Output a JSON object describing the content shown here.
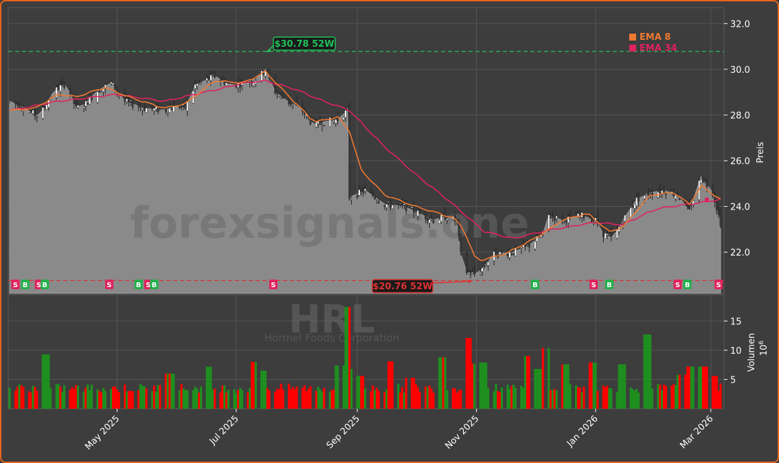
{
  "watermark": {
    "site": "forexsignals.one",
    "ticker": "HRL",
    "company": "Hormel Foods Corporation"
  },
  "colors": {
    "background": "#3d3d3d",
    "border": "#e8641e",
    "area": "#8a8a8a",
    "ema8": "#f07a32",
    "ema34": "#e0225e",
    "up": "#1e8f1e",
    "down": "#ff0000",
    "high_line": "#22c05a",
    "low_line": "#e03030"
  },
  "chart_data": [
    {
      "type": "line",
      "panel": "price",
      "ylabel": "Preis",
      "ylim": [
        20.2,
        32.7
      ],
      "yticks": [
        22.0,
        24.0,
        26.0,
        28.0,
        30.0,
        32.0
      ],
      "ytick_labels": [
        "22.0",
        "24.0",
        "26.0",
        "28.0",
        "30.0",
        "32.0"
      ],
      "x_range": [
        "2025-03-07",
        "2026-03-06"
      ],
      "xtick_labels": [
        "May 2025",
        "Jul 2025",
        "Sep 2025",
        "Nov 2025",
        "Jan 2026",
        "Mar 2026"
      ],
      "xtick_dates": [
        "2025-05-01",
        "2025-07-01",
        "2025-09-01",
        "2025-11-01",
        "2026-01-01",
        "2026-03-01"
      ],
      "grid": true,
      "close_anchors": [
        [
          "2025-03-07",
          28.6
        ],
        [
          "2025-03-15",
          28.3
        ],
        [
          "2025-03-22",
          27.9
        ],
        [
          "2025-03-29",
          29.0
        ],
        [
          "2025-04-05",
          29.4
        ],
        [
          "2025-04-10",
          28.3
        ],
        [
          "2025-04-15",
          28.5
        ],
        [
          "2025-04-20",
          29.0
        ],
        [
          "2025-04-28",
          29.4
        ],
        [
          "2025-05-05",
          28.6
        ],
        [
          "2025-05-15",
          28.3
        ],
        [
          "2025-05-25",
          28.2
        ],
        [
          "2025-06-01",
          28.4
        ],
        [
          "2025-06-05",
          28.3
        ],
        [
          "2025-06-10",
          29.3
        ],
        [
          "2025-06-20",
          29.7
        ],
        [
          "2025-06-28",
          29.3
        ],
        [
          "2025-07-05",
          29.4
        ],
        [
          "2025-07-12",
          29.6
        ],
        [
          "2025-07-16",
          30.0
        ],
        [
          "2025-07-20",
          29.1
        ],
        [
          "2025-07-27",
          28.6
        ],
        [
          "2025-08-03",
          28.3
        ],
        [
          "2025-08-10",
          27.5
        ],
        [
          "2025-08-15",
          27.7
        ],
        [
          "2025-08-22",
          27.8
        ],
        [
          "2025-08-27",
          28.2
        ],
        [
          "2025-08-28",
          24.4
        ],
        [
          "2025-09-05",
          24.7
        ],
        [
          "2025-09-15",
          24.1
        ],
        [
          "2025-09-25",
          24.0
        ],
        [
          "2025-10-05",
          23.6
        ],
        [
          "2025-10-10",
          23.4
        ],
        [
          "2025-10-18",
          23.6
        ],
        [
          "2025-10-22",
          23.3
        ],
        [
          "2025-10-25",
          21.2
        ],
        [
          "2025-11-01",
          21.0
        ],
        [
          "2025-11-10",
          21.9
        ],
        [
          "2025-11-20",
          22.0
        ],
        [
          "2025-11-28",
          22.3
        ],
        [
          "2025-12-05",
          22.8
        ],
        [
          "2025-12-08",
          23.6
        ],
        [
          "2025-12-15",
          23.4
        ],
        [
          "2025-12-25",
          23.6
        ],
        [
          "2026-01-01",
          23.4
        ],
        [
          "2026-01-05",
          22.8
        ],
        [
          "2026-01-10",
          22.6
        ],
        [
          "2026-01-15",
          23.4
        ],
        [
          "2026-01-22",
          24.3
        ],
        [
          "2026-01-29",
          24.6
        ],
        [
          "2026-02-05",
          24.7
        ],
        [
          "2026-02-12",
          24.5
        ],
        [
          "2026-02-18",
          23.8
        ],
        [
          "2026-02-24",
          25.3
        ],
        [
          "2026-03-02",
          24.6
        ],
        [
          "2026-03-06",
          23.3
        ]
      ],
      "ema8_anchors": [
        [
          "2025-03-07",
          28.2
        ],
        [
          "2025-03-20",
          28.3
        ],
        [
          "2025-04-01",
          28.9
        ],
        [
          "2025-04-10",
          28.8
        ],
        [
          "2025-04-25",
          29.2
        ],
        [
          "2025-05-10",
          28.7
        ],
        [
          "2025-05-25",
          28.3
        ],
        [
          "2025-06-05",
          28.5
        ],
        [
          "2025-06-20",
          29.5
        ],
        [
          "2025-07-05",
          29.4
        ],
        [
          "2025-07-16",
          29.9
        ],
        [
          "2025-07-27",
          28.9
        ],
        [
          "2025-08-10",
          27.7
        ],
        [
          "2025-08-22",
          27.9
        ],
        [
          "2025-08-28",
          27.3
        ],
        [
          "2025-09-03",
          25.6
        ],
        [
          "2025-09-15",
          24.5
        ],
        [
          "2025-10-01",
          24.0
        ],
        [
          "2025-10-20",
          23.5
        ],
        [
          "2025-10-25",
          23.1
        ],
        [
          "2025-11-01",
          21.6
        ],
        [
          "2025-11-15",
          21.9
        ],
        [
          "2025-12-01",
          22.6
        ],
        [
          "2025-12-15",
          23.4
        ],
        [
          "2025-12-28",
          23.7
        ],
        [
          "2026-01-08",
          22.9
        ],
        [
          "2026-01-15",
          23.1
        ],
        [
          "2026-01-29",
          24.5
        ],
        [
          "2026-02-10",
          24.6
        ],
        [
          "2026-02-18",
          24.1
        ],
        [
          "2026-02-24",
          24.9
        ],
        [
          "2026-03-06",
          24.3
        ]
      ],
      "ema34_anchors": [
        [
          "2025-03-07",
          28.2
        ],
        [
          "2025-04-01",
          28.6
        ],
        [
          "2025-05-01",
          28.9
        ],
        [
          "2025-05-25",
          28.6
        ],
        [
          "2025-06-15",
          29.0
        ],
        [
          "2025-07-05",
          29.4
        ],
        [
          "2025-07-16",
          29.5
        ],
        [
          "2025-08-01",
          29.1
        ],
        [
          "2025-08-15",
          28.6
        ],
        [
          "2025-08-28",
          28.2
        ],
        [
          "2025-09-15",
          26.6
        ],
        [
          "2025-10-01",
          25.4
        ],
        [
          "2025-10-20",
          24.1
        ],
        [
          "2025-11-05",
          22.9
        ],
        [
          "2025-11-20",
          22.6
        ],
        [
          "2025-12-10",
          23.0
        ],
        [
          "2026-01-01",
          23.3
        ],
        [
          "2026-01-15",
          23.2
        ],
        [
          "2026-02-01",
          23.9
        ],
        [
          "2026-02-18",
          24.1
        ],
        [
          "2026-03-06",
          24.3
        ]
      ],
      "legend": [
        {
          "name": "EMA 8",
          "color": "#f07a32"
        },
        {
          "name": "EMA 34",
          "color": "#e0225e"
        }
      ],
      "legend_position": "top-right",
      "high_52w": {
        "value": 30.78,
        "label": "$30.78 52W",
        "date": "2025-07-16"
      },
      "low_52w": {
        "value": 20.76,
        "label": "$20.76 52W",
        "date": "2025-10-30"
      },
      "signals": [
        {
          "type": "S",
          "date": "2025-03-10"
        },
        {
          "type": "B",
          "date": "2025-03-15"
        },
        {
          "type": "S",
          "date": "2025-03-22"
        },
        {
          "type": "B",
          "date": "2025-03-25"
        },
        {
          "type": "S",
          "date": "2025-04-27"
        },
        {
          "type": "B",
          "date": "2025-05-12"
        },
        {
          "type": "S",
          "date": "2025-05-17"
        },
        {
          "type": "B",
          "date": "2025-05-20"
        },
        {
          "type": "S",
          "date": "2025-07-20"
        },
        {
          "type": "B",
          "date": "2025-12-01"
        },
        {
          "type": "S",
          "date": "2025-12-31"
        },
        {
          "type": "B",
          "date": "2026-01-08"
        },
        {
          "type": "S",
          "date": "2026-02-12"
        },
        {
          "type": "B",
          "date": "2026-02-17"
        },
        {
          "type": "S",
          "date": "2026-03-05"
        }
      ]
    },
    {
      "type": "bar",
      "panel": "volume",
      "ylabel": "Volumen",
      "yunit": "10^6",
      "ylim": [
        0,
        19.5
      ],
      "yticks": [
        5,
        10,
        15
      ],
      "ytick_labels": [
        "5",
        "10",
        "15"
      ],
      "volume_level": 3.2,
      "volume_spikes": [
        [
          "2025-03-25",
          9.3
        ],
        [
          "2025-05-28",
          6.0
        ],
        [
          "2025-06-16",
          7.2
        ],
        [
          "2025-07-11",
          8.0
        ],
        [
          "2025-07-14",
          6.5
        ],
        [
          "2025-08-23",
          7.4
        ],
        [
          "2025-08-28",
          17.4
        ],
        [
          "2025-08-29",
          6.8
        ],
        [
          "2025-09-02",
          5.6
        ],
        [
          "2025-09-19",
          8.1
        ],
        [
          "2025-09-28",
          5.3
        ],
        [
          "2025-10-14",
          8.8
        ],
        [
          "2025-10-28",
          12.1
        ],
        [
          "2025-10-30",
          7.7
        ],
        [
          "2025-11-04",
          7.9
        ],
        [
          "2025-11-28",
          9.0
        ],
        [
          "2025-12-02",
          6.8
        ],
        [
          "2025-12-06",
          10.4
        ],
        [
          "2025-12-16",
          7.6
        ],
        [
          "2025-12-30",
          7.9
        ],
        [
          "2026-01-15",
          7.6
        ],
        [
          "2026-01-27",
          12.7
        ],
        [
          "2026-02-14",
          5.8
        ],
        [
          "2026-02-18",
          7.2
        ],
        [
          "2026-02-25",
          7.2
        ],
        [
          "2026-03-02",
          5.6
        ]
      ]
    }
  ]
}
